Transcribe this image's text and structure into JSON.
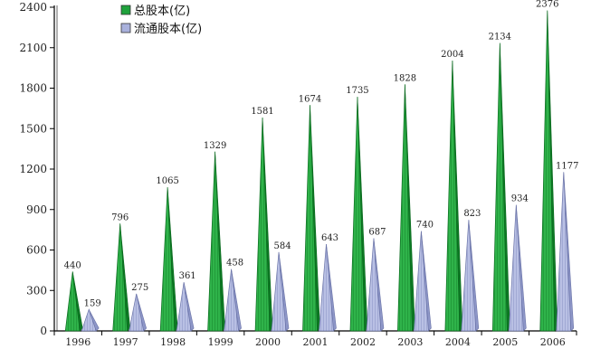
{
  "chart_data": {
    "type": "bar",
    "bar_shape": "cone",
    "categories": [
      "1996",
      "1997",
      "1998",
      "1999",
      "2000",
      "2001",
      "2002",
      "2003",
      "2004",
      "2005",
      "2006"
    ],
    "series": [
      {
        "name": "总股本(亿)",
        "color": "#1fa23c",
        "values": [
          440,
          796,
          1065,
          1329,
          1581,
          1674,
          1735,
          1828,
          2004,
          2134,
          2376
        ]
      },
      {
        "name": "流通股本(亿)",
        "color": "#a9b1dc",
        "values": [
          159,
          275,
          361,
          458,
          584,
          643,
          687,
          740,
          823,
          934,
          1177
        ]
      }
    ],
    "yticks": [
      0,
      300,
      600,
      900,
      1200,
      1500,
      1800,
      2100,
      2400
    ],
    "ylim": [
      0,
      2400
    ],
    "title": "",
    "xlabel": "",
    "ylabel": "",
    "grid": false,
    "legend_position": "top-left",
    "data_labels": true
  }
}
